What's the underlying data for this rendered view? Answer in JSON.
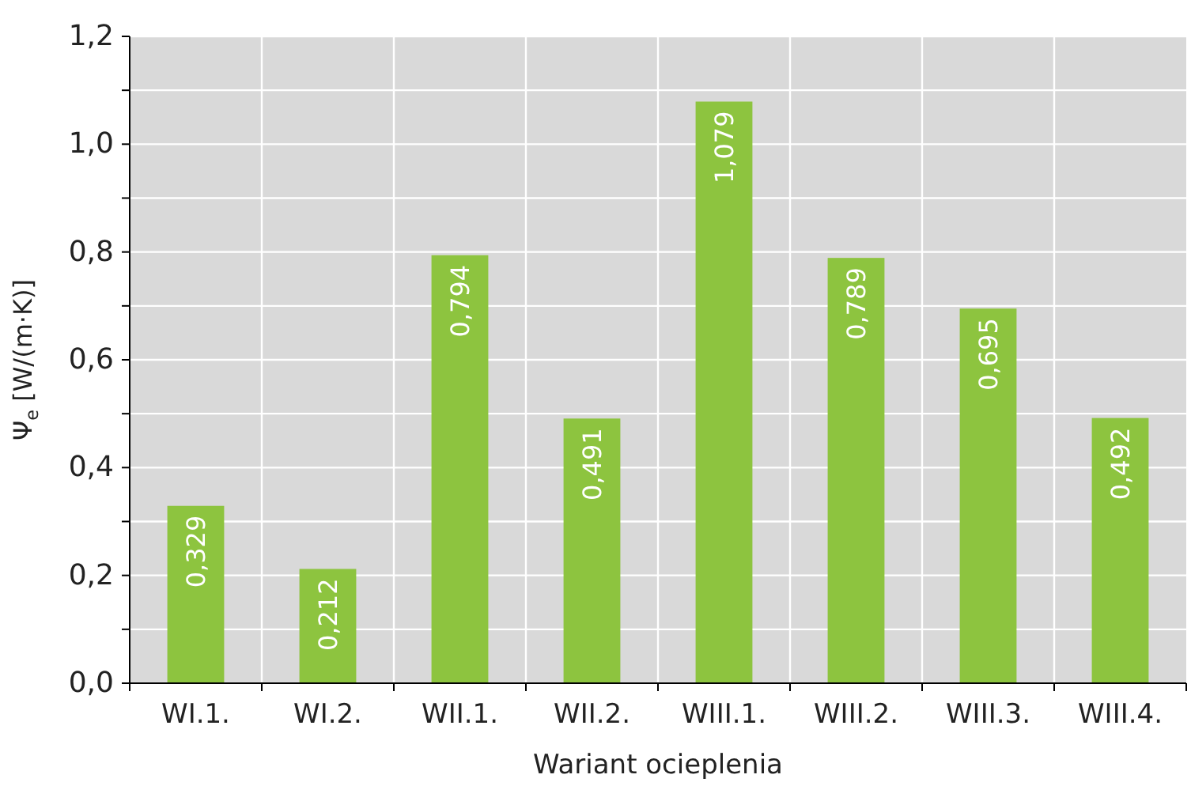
{
  "chart_data": {
    "type": "bar",
    "xlabel": "Wariant ocieplenia",
    "ylabel": "Ψ$_{e}$ [W/(m·K)]",
    "categories": [
      "WI.1.",
      "WI.2.",
      "WII.1.",
      "WII.2.",
      "WIII.1.",
      "WIII.2.",
      "WIII.3.",
      "WIII.4."
    ],
    "values": [
      0.329,
      0.212,
      0.794,
      0.491,
      1.079,
      0.789,
      0.695,
      0.492
    ],
    "value_labels": [
      "0,329",
      "0,212",
      "0,794",
      "0,491",
      "1,079",
      "0,789",
      "0,695",
      "0,492"
    ],
    "color": "#8dc43f",
    "ylim": [
      0,
      1.2
    ],
    "yticks": [
      {
        "value": 0,
        "label": "0,0"
      },
      {
        "value": 0.1,
        "label": null
      },
      {
        "value": 0.2,
        "label": "0,2"
      },
      {
        "value": 0.3,
        "label": null
      },
      {
        "value": 0.4,
        "label": "0,4"
      },
      {
        "value": 0.5,
        "label": null
      },
      {
        "value": 0.6,
        "label": "0,6"
      },
      {
        "value": 0.7,
        "label": null
      },
      {
        "value": 0.8,
        "label": "0,8"
      },
      {
        "value": 0.9,
        "label": null
      },
      {
        "value": 1.0,
        "label": "1,0"
      },
      {
        "value": 1.1,
        "label": null
      },
      {
        "value": 1.2,
        "label": "1,2"
      }
    ],
    "grid": true
  }
}
